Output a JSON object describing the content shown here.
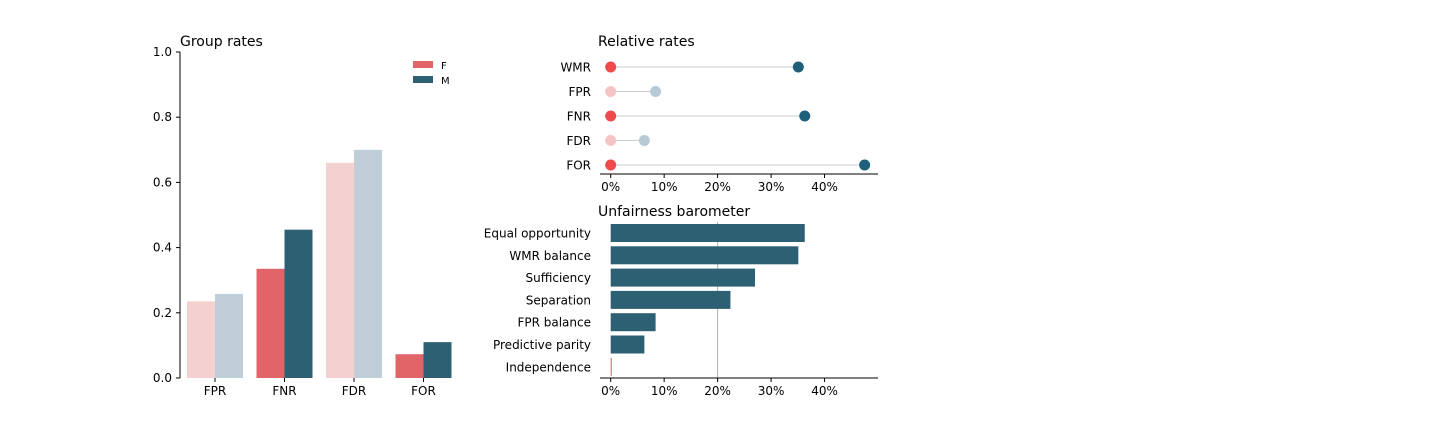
{
  "chart_data": [
    {
      "type": "bar",
      "title": "Group rates",
      "categories": [
        "FPR",
        "FNR",
        "FDR",
        "FOR"
      ],
      "series": [
        {
          "name": "F",
          "values": [
            0.235,
            0.335,
            0.66,
            0.073
          ]
        },
        {
          "name": "M",
          "values": [
            0.258,
            0.455,
            0.7,
            0.11
          ]
        }
      ],
      "highlighted_categories": [
        "FNR",
        "FOR"
      ],
      "ylim": [
        0,
        1.0
      ],
      "yticks": [
        "0.0",
        "0.2",
        "0.4",
        "0.6",
        "0.8",
        "1.0"
      ],
      "legend_placement": "top-right",
      "colors": {
        "F": "#e06468",
        "M": "#2d6073",
        "F_faded": "#f5d0d1",
        "M_faded": "#c0cfd7"
      }
    },
    {
      "type": "scatter",
      "title": "Relative rates",
      "categories": [
        "WMR",
        "FPR",
        "FNR",
        "FDR",
        "FOR"
      ],
      "series": [
        {
          "name": "F",
          "values": [
            0,
            0,
            0,
            0,
            0
          ]
        },
        {
          "name": "M",
          "values": [
            35.1,
            8.4,
            36.3,
            6.3,
            47.5
          ]
        }
      ],
      "highlighted_categories": [
        "WMR",
        "FNR",
        "FOR"
      ],
      "xlim": [
        -2,
        50
      ],
      "xticks": [
        "0%",
        "10%",
        "20%",
        "30%",
        "40%"
      ],
      "colors": {
        "F": "#f04a4c",
        "M": "#1f5f7a",
        "F_faded": "#f7c4c5",
        "M_faded": "#b6cad6",
        "connector": "#cccccc"
      }
    },
    {
      "type": "bar",
      "orientation": "horizontal",
      "title": "Unfairness barometer",
      "categories": [
        "Equal opportunity",
        "WMR balance",
        "Sufficiency",
        "Separation",
        "FPR balance",
        "Predictive parity",
        "Independence"
      ],
      "values": [
        36.3,
        35.1,
        27.0,
        22.4,
        8.4,
        6.3,
        0.2
      ],
      "xlim": [
        -2,
        50
      ],
      "xticks": [
        "0%",
        "10%",
        "20%",
        "30%",
        "40%"
      ],
      "reference_line": 20,
      "colors": {
        "bar": "#2d6073",
        "near_zero": "#e06468",
        "reference": "#b0b0b0"
      }
    }
  ]
}
